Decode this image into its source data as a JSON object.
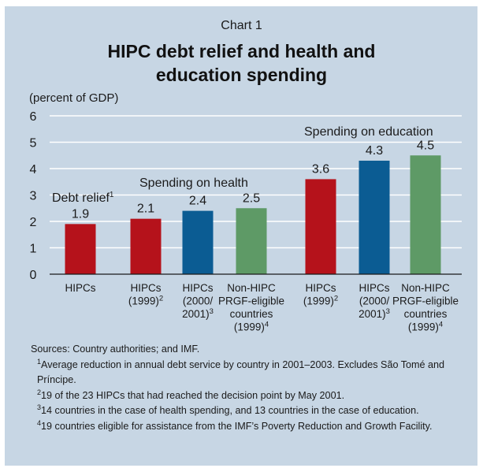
{
  "kicker": "Chart 1",
  "title_line1": "HIPC debt relief and health and",
  "title_line2": "education spending",
  "unit": "(percent of GDP)",
  "chart_data": {
    "type": "bar",
    "yticks": [
      0,
      1,
      2,
      3,
      4,
      5,
      6
    ],
    "ylim": [
      0,
      6
    ],
    "group_labels": [
      {
        "text": "Debt relief",
        "sup": "1"
      },
      {
        "text": "Spending on health",
        "sup": ""
      },
      {
        "text": "Spending on education",
        "sup": ""
      }
    ],
    "bars": [
      {
        "label": [
          "HIPCs"
        ],
        "sup": "",
        "value": 1.9,
        "value_label": "1.9",
        "color": "#b5121b"
      },
      {
        "label": [
          "HIPCs",
          "(1999)"
        ],
        "sup": "2",
        "value": 2.1,
        "value_label": "2.1",
        "color": "#b5121b"
      },
      {
        "label": [
          "HIPCs",
          "(2000/",
          "2001)"
        ],
        "sup": "3",
        "value": 2.4,
        "value_label": "2.4",
        "color": "#0b5c93"
      },
      {
        "label": [
          "Non-HIPC",
          "PRGF-eligible",
          "countries",
          "(1999)"
        ],
        "sup": "4",
        "value": 2.5,
        "value_label": "2.5",
        "color": "#5e9a66"
      },
      {
        "label": [
          "HIPCs",
          "(1999)"
        ],
        "sup": "2",
        "value": 3.6,
        "value_label": "3.6",
        "color": "#b5121b"
      },
      {
        "label": [
          "HIPCs",
          "(2000/",
          "2001)"
        ],
        "sup": "3",
        "value": 4.3,
        "value_label": "4.3",
        "color": "#0b5c93"
      },
      {
        "label": [
          "Non-HIPC",
          "PRGF-eligible",
          "countries",
          "(1999)"
        ],
        "sup": "4",
        "value": 4.5,
        "value_label": "4.5",
        "color": "#5e9a66"
      }
    ]
  },
  "notes": {
    "sources": "Sources: Country authorities; and IMF.",
    "n1_mark": "1",
    "n1": "Average reduction in annual debt service by country in 2001–2003. Excludes São Tomé and Príncipe.",
    "n2_mark": "2",
    "n2": "19 of the 23 HIPCs that had reached the decision point by May 2001.",
    "n3_mark": "3",
    "n3": "14 countries in the case of health spending, and 13 countries in the case of education.",
    "n4_mark": "4",
    "n4": "19 countries eligible for assistance from the IMF’s Poverty Reduction and Growth Facility."
  }
}
